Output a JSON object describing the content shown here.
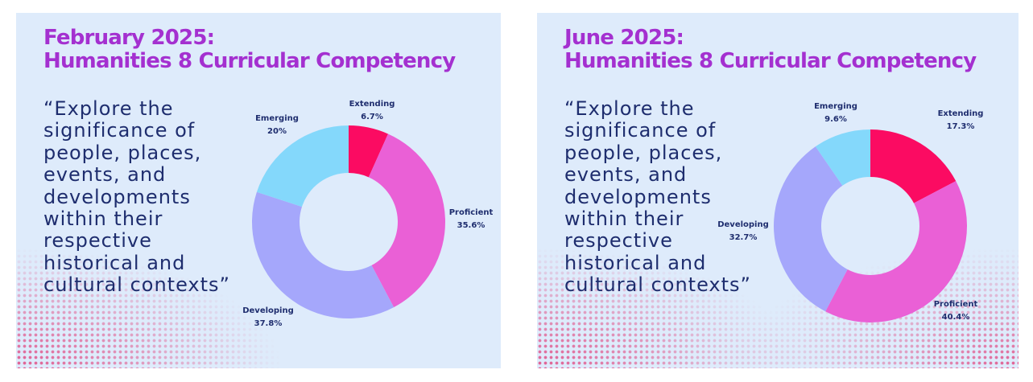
{
  "chart_data": [
    {
      "type": "donut",
      "title_line1": "February 2025:",
      "title_line2": "Humanities 8 Curricular Competency",
      "quote": "“Explore the significance of people, places, events, and developments within their respective historical and cultural contexts”",
      "slices": [
        {
          "name": "Extending",
          "value": 6.7,
          "label": "6.7%",
          "color": "#fb0b62"
        },
        {
          "name": "Proficient",
          "value": 35.6,
          "label": "35.6%",
          "color": "#ea60d6"
        },
        {
          "name": "Developing",
          "value": 37.8,
          "label": "37.8%",
          "color": "#a5a7fb"
        },
        {
          "name": "Emerging",
          "value": 20,
          "label": "20%",
          "color": "#84d8fb"
        }
      ]
    },
    {
      "type": "donut",
      "title_line1": "June 2025:",
      "title_line2": "Humanities 8 Curricular Competency",
      "quote": "“Explore the significance of people, places, events, and developments within their respective historical and cultural contexts”",
      "slices": [
        {
          "name": "Extending",
          "value": 17.3,
          "label": "17.3%",
          "color": "#fb0b62"
        },
        {
          "name": "Proficient",
          "value": 40.4,
          "label": "40.4%",
          "color": "#ea60d6"
        },
        {
          "name": "Developing",
          "value": 32.7,
          "label": "32.7%",
          "color": "#a5a7fb"
        },
        {
          "name": "Emerging",
          "value": 9.6,
          "label": "9.6%",
          "color": "#84d8fb"
        }
      ]
    }
  ]
}
